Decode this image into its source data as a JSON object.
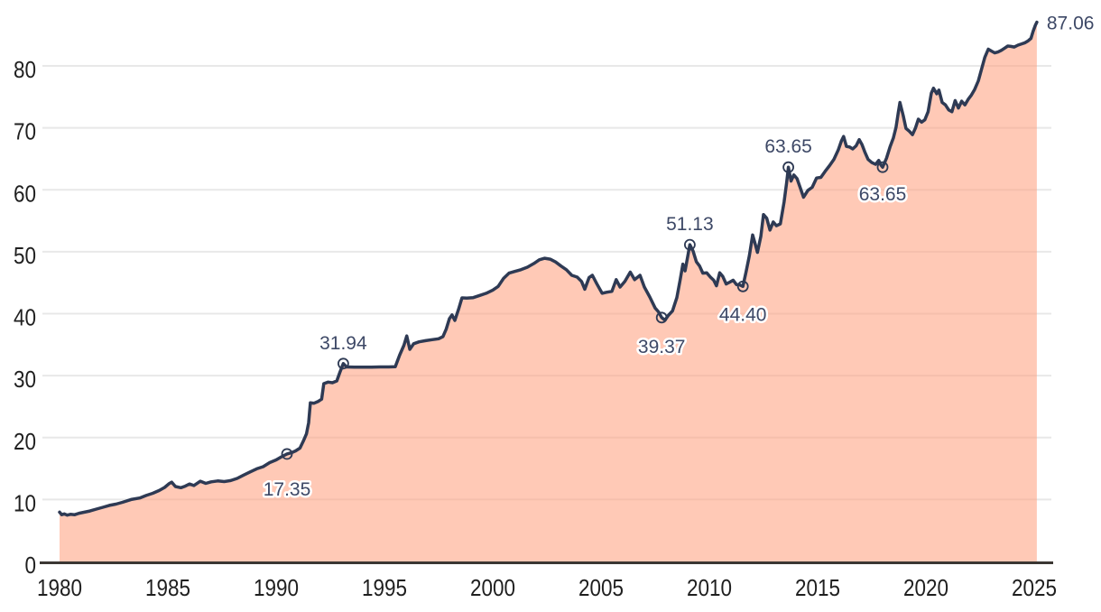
{
  "chart_data": {
    "type": "area",
    "title": "",
    "xlabel": "",
    "ylabel": "",
    "x_ticks": [
      1980,
      1985,
      1990,
      1995,
      2000,
      2005,
      2010,
      2015,
      2020,
      2025
    ],
    "y_ticks": [
      0,
      10,
      20,
      30,
      40,
      50,
      60,
      70,
      80
    ],
    "xlim": [
      1980,
      2025.12
    ],
    "ylim": [
      0,
      90
    ],
    "grid": "horizontal",
    "legend": "none",
    "colors": {
      "line": "#2e3a54",
      "fill": "rgba(255,158,124,0.56)",
      "gridline": "#e8e8e8",
      "axis": "#3b3733",
      "tick_text": "#1f1f1f",
      "annotation_text": "#3d4866",
      "halo": "#ffffff",
      "background": "#ffffff"
    },
    "points": [
      [
        1980.0,
        7.95
      ],
      [
        1980.1,
        7.55
      ],
      [
        1980.22,
        7.68
      ],
      [
        1980.35,
        7.48
      ],
      [
        1980.5,
        7.6
      ],
      [
        1980.7,
        7.55
      ],
      [
        1980.9,
        7.78
      ],
      [
        1981.1,
        7.92
      ],
      [
        1981.4,
        8.15
      ],
      [
        1981.7,
        8.45
      ],
      [
        1982.0,
        8.75
      ],
      [
        1982.3,
        9.05
      ],
      [
        1982.6,
        9.25
      ],
      [
        1982.9,
        9.55
      ],
      [
        1983.3,
        10.0
      ],
      [
        1983.7,
        10.25
      ],
      [
        1984.0,
        10.65
      ],
      [
        1984.3,
        11.0
      ],
      [
        1984.6,
        11.45
      ],
      [
        1984.85,
        11.95
      ],
      [
        1985.05,
        12.55
      ],
      [
        1985.18,
        12.8
      ],
      [
        1985.35,
        12.1
      ],
      [
        1985.6,
        11.9
      ],
      [
        1985.8,
        12.15
      ],
      [
        1986.0,
        12.5
      ],
      [
        1986.2,
        12.25
      ],
      [
        1986.5,
        12.95
      ],
      [
        1986.75,
        12.6
      ],
      [
        1987.0,
        12.85
      ],
      [
        1987.3,
        13.0
      ],
      [
        1987.6,
        12.9
      ],
      [
        1987.9,
        13.05
      ],
      [
        1988.2,
        13.4
      ],
      [
        1988.5,
        13.95
      ],
      [
        1988.8,
        14.45
      ],
      [
        1989.1,
        14.95
      ],
      [
        1989.4,
        15.3
      ],
      [
        1989.7,
        15.95
      ],
      [
        1990.0,
        16.4
      ],
      [
        1990.25,
        16.9
      ],
      [
        1990.5,
        17.35
      ],
      [
        1990.7,
        17.55
      ],
      [
        1990.9,
        17.85
      ],
      [
        1991.1,
        18.3
      ],
      [
        1991.25,
        19.4
      ],
      [
        1991.4,
        20.6
      ],
      [
        1991.5,
        22.4
      ],
      [
        1991.58,
        25.6
      ],
      [
        1991.75,
        25.55
      ],
      [
        1991.95,
        25.85
      ],
      [
        1992.1,
        26.2
      ],
      [
        1992.2,
        28.7
      ],
      [
        1992.4,
        28.95
      ],
      [
        1992.6,
        28.85
      ],
      [
        1992.8,
        29.15
      ],
      [
        1992.95,
        30.6
      ],
      [
        1993.1,
        31.94
      ],
      [
        1993.25,
        31.4
      ],
      [
        1993.6,
        31.37
      ],
      [
        1994.0,
        31.37
      ],
      [
        1994.4,
        31.38
      ],
      [
        1994.8,
        31.4
      ],
      [
        1995.2,
        31.4
      ],
      [
        1995.5,
        31.45
      ],
      [
        1995.7,
        33.3
      ],
      [
        1995.9,
        34.9
      ],
      [
        1996.03,
        36.4
      ],
      [
        1996.17,
        34.25
      ],
      [
        1996.35,
        35.15
      ],
      [
        1996.6,
        35.45
      ],
      [
        1996.9,
        35.65
      ],
      [
        1997.2,
        35.8
      ],
      [
        1997.5,
        35.95
      ],
      [
        1997.7,
        36.3
      ],
      [
        1997.85,
        37.5
      ],
      [
        1998.0,
        39.2
      ],
      [
        1998.12,
        39.8
      ],
      [
        1998.25,
        38.9
      ],
      [
        1998.42,
        40.7
      ],
      [
        1998.58,
        42.55
      ],
      [
        1998.8,
        42.5
      ],
      [
        1999.1,
        42.6
      ],
      [
        1999.4,
        42.95
      ],
      [
        1999.7,
        43.3
      ],
      [
        2000.0,
        43.8
      ],
      [
        2000.25,
        44.4
      ],
      [
        2000.5,
        45.7
      ],
      [
        2000.75,
        46.55
      ],
      [
        2001.0,
        46.8
      ],
      [
        2001.3,
        47.1
      ],
      [
        2001.6,
        47.5
      ],
      [
        2001.9,
        48.1
      ],
      [
        2002.15,
        48.7
      ],
      [
        2002.4,
        48.95
      ],
      [
        2002.65,
        48.8
      ],
      [
        2002.9,
        48.35
      ],
      [
        2003.15,
        47.7
      ],
      [
        2003.4,
        47.1
      ],
      [
        2003.65,
        46.2
      ],
      [
        2003.9,
        45.9
      ],
      [
        2004.1,
        45.2
      ],
      [
        2004.25,
        43.95
      ],
      [
        2004.45,
        45.85
      ],
      [
        2004.6,
        46.2
      ],
      [
        2004.8,
        44.85
      ],
      [
        2005.05,
        43.3
      ],
      [
        2005.25,
        43.45
      ],
      [
        2005.5,
        43.6
      ],
      [
        2005.7,
        45.5
      ],
      [
        2005.88,
        44.3
      ],
      [
        2006.1,
        45.2
      ],
      [
        2006.35,
        46.7
      ],
      [
        2006.55,
        45.5
      ],
      [
        2006.8,
        46.2
      ],
      [
        2007.0,
        44.3
      ],
      [
        2007.25,
        42.7
      ],
      [
        2007.5,
        40.9
      ],
      [
        2007.65,
        40.3
      ],
      [
        2007.8,
        39.37
      ],
      [
        2007.95,
        38.95
      ],
      [
        2008.1,
        39.7
      ],
      [
        2008.3,
        40.45
      ],
      [
        2008.5,
        42.6
      ],
      [
        2008.65,
        45.4
      ],
      [
        2008.78,
        48.0
      ],
      [
        2008.88,
        46.9
      ],
      [
        2009.0,
        49.2
      ],
      [
        2009.1,
        51.13
      ],
      [
        2009.25,
        50.1
      ],
      [
        2009.4,
        48.4
      ],
      [
        2009.55,
        47.7
      ],
      [
        2009.7,
        46.55
      ],
      [
        2009.88,
        46.6
      ],
      [
        2010.05,
        45.9
      ],
      [
        2010.2,
        45.4
      ],
      [
        2010.33,
        44.5
      ],
      [
        2010.48,
        46.6
      ],
      [
        2010.62,
        46.0
      ],
      [
        2010.78,
        44.8
      ],
      [
        2010.95,
        45.1
      ],
      [
        2011.1,
        45.4
      ],
      [
        2011.25,
        44.7
      ],
      [
        2011.4,
        44.65
      ],
      [
        2011.55,
        44.4
      ],
      [
        2011.7,
        46.8
      ],
      [
        2011.85,
        49.4
      ],
      [
        2012.0,
        52.7
      ],
      [
        2012.12,
        51.2
      ],
      [
        2012.22,
        49.9
      ],
      [
        2012.38,
        52.5
      ],
      [
        2012.5,
        56.0
      ],
      [
        2012.65,
        55.4
      ],
      [
        2012.8,
        53.5
      ],
      [
        2012.95,
        54.8
      ],
      [
        2013.1,
        54.2
      ],
      [
        2013.28,
        54.5
      ],
      [
        2013.45,
        58.0
      ],
      [
        2013.57,
        61.2
      ],
      [
        2013.65,
        63.65
      ],
      [
        2013.77,
        61.4
      ],
      [
        2013.9,
        62.4
      ],
      [
        2014.05,
        61.8
      ],
      [
        2014.2,
        60.3
      ],
      [
        2014.35,
        58.8
      ],
      [
        2014.55,
        59.9
      ],
      [
        2014.75,
        60.4
      ],
      [
        2014.95,
        61.9
      ],
      [
        2015.15,
        62.0
      ],
      [
        2015.35,
        63.0
      ],
      [
        2015.55,
        63.9
      ],
      [
        2015.75,
        64.9
      ],
      [
        2015.95,
        66.4
      ],
      [
        2016.1,
        67.9
      ],
      [
        2016.2,
        68.6
      ],
      [
        2016.33,
        67.0
      ],
      [
        2016.48,
        66.9
      ],
      [
        2016.62,
        66.6
      ],
      [
        2016.78,
        67.1
      ],
      [
        2016.92,
        68.1
      ],
      [
        2017.05,
        67.3
      ],
      [
        2017.18,
        66.1
      ],
      [
        2017.33,
        64.9
      ],
      [
        2017.5,
        64.4
      ],
      [
        2017.68,
        64.1
      ],
      [
        2017.82,
        64.75
      ],
      [
        2017.92,
        64.0
      ],
      [
        2018.0,
        63.65
      ],
      [
        2018.18,
        65.1
      ],
      [
        2018.35,
        67.0
      ],
      [
        2018.5,
        68.4
      ],
      [
        2018.62,
        70.1
      ],
      [
        2018.72,
        72.4
      ],
      [
        2018.8,
        74.1
      ],
      [
        2018.95,
        72.0
      ],
      [
        2019.08,
        69.9
      ],
      [
        2019.22,
        69.5
      ],
      [
        2019.38,
        68.9
      ],
      [
        2019.52,
        70.0
      ],
      [
        2019.65,
        71.4
      ],
      [
        2019.8,
        70.9
      ],
      [
        2019.95,
        71.3
      ],
      [
        2020.1,
        72.6
      ],
      [
        2020.25,
        75.6
      ],
      [
        2020.35,
        76.4
      ],
      [
        2020.5,
        75.5
      ],
      [
        2020.6,
        76.1
      ],
      [
        2020.75,
        74.1
      ],
      [
        2020.9,
        73.7
      ],
      [
        2021.05,
        72.9
      ],
      [
        2021.2,
        72.6
      ],
      [
        2021.35,
        74.4
      ],
      [
        2021.5,
        73.2
      ],
      [
        2021.65,
        74.3
      ],
      [
        2021.8,
        73.7
      ],
      [
        2021.95,
        74.6
      ],
      [
        2022.1,
        75.3
      ],
      [
        2022.25,
        76.2
      ],
      [
        2022.42,
        77.6
      ],
      [
        2022.58,
        79.6
      ],
      [
        2022.72,
        81.4
      ],
      [
        2022.88,
        82.7
      ],
      [
        2023.02,
        82.4
      ],
      [
        2023.18,
        82.1
      ],
      [
        2023.33,
        82.25
      ],
      [
        2023.48,
        82.5
      ],
      [
        2023.63,
        82.85
      ],
      [
        2023.78,
        83.2
      ],
      [
        2023.92,
        83.15
      ],
      [
        2024.08,
        83.05
      ],
      [
        2024.25,
        83.35
      ],
      [
        2024.42,
        83.55
      ],
      [
        2024.58,
        83.75
      ],
      [
        2024.72,
        84.05
      ],
      [
        2024.85,
        84.45
      ],
      [
        2024.95,
        85.6
      ],
      [
        2025.05,
        86.55
      ],
      [
        2025.12,
        87.06
      ]
    ],
    "annotations": [
      {
        "label": "17.35",
        "year": 1990.5,
        "value": 17.35,
        "placement": "below",
        "marker": true,
        "dy": 46
      },
      {
        "label": "31.94",
        "year": 1993.1,
        "value": 31.94,
        "placement": "above",
        "marker": true,
        "dy": -16
      },
      {
        "label": "39.37",
        "year": 2007.8,
        "value": 39.37,
        "placement": "below",
        "marker": true,
        "dy": 39
      },
      {
        "label": "51.13",
        "year": 2009.1,
        "value": 51.13,
        "placement": "above",
        "marker": true,
        "dy": -16
      },
      {
        "label": "44.40",
        "year": 2011.55,
        "value": 44.4,
        "placement": "below",
        "marker": true,
        "dy": 38
      },
      {
        "label": "63.65",
        "year": 2013.65,
        "value": 63.65,
        "placement": "above",
        "marker": true,
        "dy": -16
      },
      {
        "label": "63.65",
        "year": 2018.0,
        "value": 63.65,
        "placement": "below",
        "marker": true,
        "dy": 37
      },
      {
        "label": "87.06",
        "year": 2025.12,
        "value": 87.06,
        "placement": "right",
        "marker": false,
        "dy": 8
      }
    ]
  }
}
